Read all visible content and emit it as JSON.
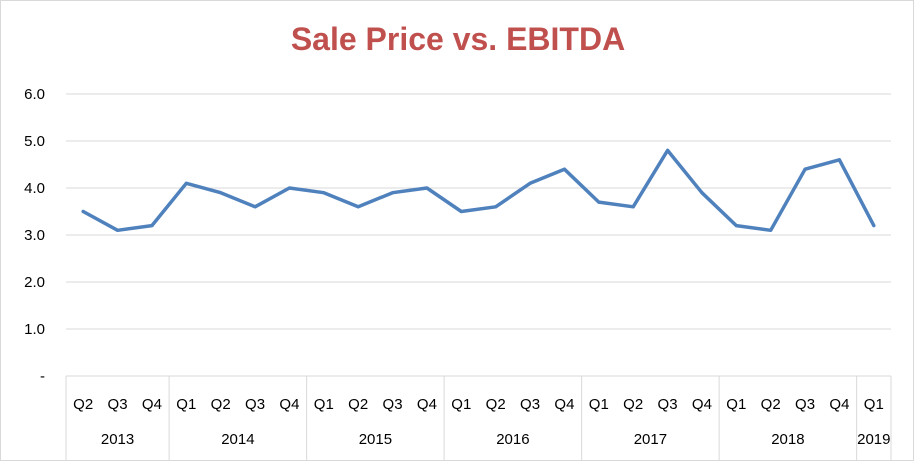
{
  "chart_data": {
    "type": "line",
    "title": "Sale Price vs. EBITDA",
    "xlabel": "",
    "ylabel": "",
    "ylim": [
      0,
      6
    ],
    "y_ticks": [
      "-",
      "1.0",
      "2.0",
      "3.0",
      "4.0",
      "5.0",
      "6.0"
    ],
    "grid": true,
    "legend": "none",
    "line_color": "#4f81bd",
    "title_color": "#c0504d",
    "categories": [
      "Q2",
      "Q3",
      "Q4",
      "Q1",
      "Q2",
      "Q3",
      "Q4",
      "Q1",
      "Q2",
      "Q3",
      "Q4",
      "Q1",
      "Q2",
      "Q3",
      "Q4",
      "Q1",
      "Q2",
      "Q3",
      "Q4",
      "Q1",
      "Q2",
      "Q3",
      "Q4",
      "Q1"
    ],
    "years": [
      {
        "label": "2013",
        "count": 3
      },
      {
        "label": "2014",
        "count": 4
      },
      {
        "label": "2015",
        "count": 4
      },
      {
        "label": "2016",
        "count": 4
      },
      {
        "label": "2017",
        "count": 4
      },
      {
        "label": "2018",
        "count": 4
      },
      {
        "label": "2019",
        "count": 1
      }
    ],
    "series": [
      {
        "values": [
          3.5,
          3.1,
          3.2,
          4.1,
          3.9,
          3.6,
          4.0,
          3.9,
          3.6,
          3.9,
          4.0,
          3.5,
          3.6,
          4.1,
          4.4,
          3.7,
          3.6,
          4.8,
          3.9,
          3.2,
          3.1,
          4.4,
          4.6,
          3.2
        ]
      }
    ]
  }
}
